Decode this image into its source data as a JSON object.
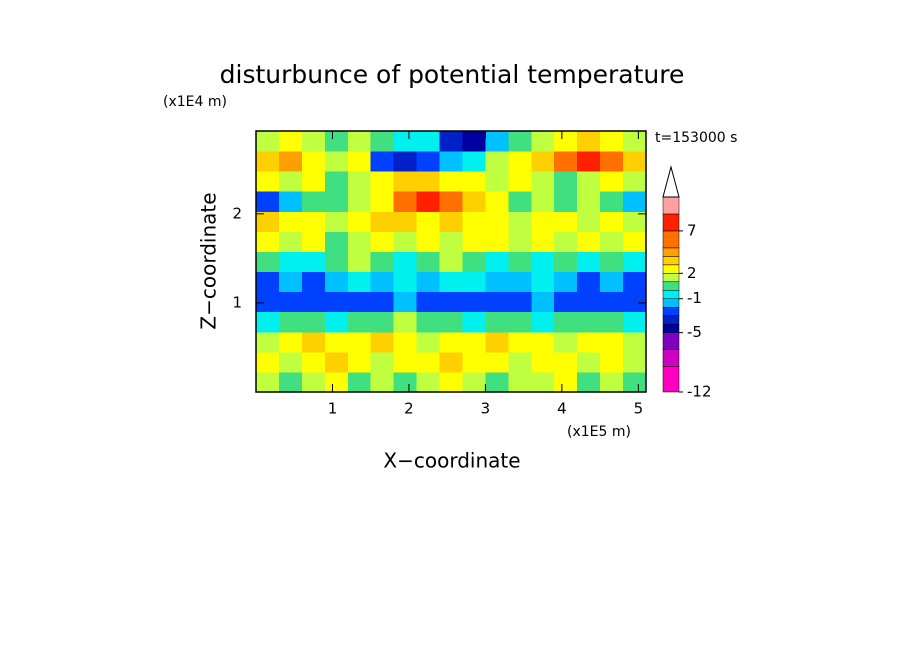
{
  "chart_data": {
    "type": "contour",
    "title": "disturbunce of potential temperature",
    "x_label": "X−coordinate",
    "y_label": "Z−coordinate",
    "x_unit": "(x1E5 m)",
    "y_unit": "(x1E4 m)",
    "annotation": "t=153000 s",
    "xlim": [
      0,
      5.1
    ],
    "ylim": [
      0,
      2.93
    ],
    "xticks": [
      1,
      2,
      3,
      4,
      5
    ],
    "yticks": [
      1,
      2
    ],
    "levels": [
      -12,
      -9,
      -7,
      -5,
      -4,
      -3,
      -2,
      -1,
      0,
      1,
      2,
      3,
      4,
      5,
      7,
      9,
      11
    ],
    "colors": [
      "#ff00c0",
      "#d000c0",
      "#8000c0",
      "#0000a0",
      "#0020c8",
      "#0040ff",
      "#00c0ff",
      "#00f0f0",
      "#40e080",
      "#c0ff40",
      "#ffff00",
      "#ffd000",
      "#ffa000",
      "#ff7000",
      "#ff2000",
      "#ffa0a0"
    ],
    "colorbar_ticks": [
      -12,
      -5,
      -1,
      2,
      7
    ],
    "z": [
      [
        1,
        0,
        1,
        2,
        0,
        1,
        0,
        1,
        2,
        1,
        0,
        1,
        1,
        2,
        0,
        1,
        0
      ],
      [
        2,
        1,
        2,
        3,
        2,
        1,
        2,
        2,
        3,
        2,
        2,
        1,
        2,
        2,
        1,
        2,
        1
      ],
      [
        1,
        2,
        3,
        2,
        2,
        3,
        2,
        1,
        2,
        2,
        3,
        2,
        2,
        1,
        2,
        2,
        1
      ],
      [
        -1,
        0,
        0,
        -1,
        0,
        0,
        1,
        0,
        0,
        -1,
        0,
        0,
        -1,
        0,
        0,
        0,
        -1
      ],
      [
        -3,
        -3,
        -3,
        -3,
        -3,
        -3,
        -2,
        -3,
        -3,
        -3,
        -3,
        -3,
        -2,
        -3,
        -3,
        -3,
        -3
      ],
      [
        -3,
        -2,
        -3,
        -2,
        -1,
        -2,
        -1,
        -2,
        -1,
        -1,
        -2,
        -2,
        -1,
        -2,
        -3,
        -2,
        -3
      ],
      [
        0,
        -1,
        -1,
        0,
        1,
        0,
        -1,
        0,
        1,
        0,
        -1,
        0,
        -1,
        0,
        -1,
        0,
        -1
      ],
      [
        2,
        1,
        2,
        0,
        1,
        2,
        1,
        2,
        1,
        2,
        2,
        1,
        2,
        1,
        2,
        1,
        2
      ],
      [
        3,
        2,
        2,
        1,
        2,
        3,
        3,
        2,
        3,
        2,
        2,
        1,
        2,
        2,
        1,
        2,
        1
      ],
      [
        -3,
        -2,
        0,
        0,
        1,
        2,
        5,
        7,
        5,
        3,
        2,
        0,
        1,
        0,
        1,
        0,
        -2
      ],
      [
        2,
        1,
        2,
        0,
        1,
        2,
        3,
        3,
        2,
        2,
        1,
        2,
        1,
        0,
        1,
        2,
        1
      ],
      [
        3,
        4,
        2,
        1,
        2,
        -3,
        -4,
        -3,
        -2,
        -1,
        1,
        2,
        3,
        5,
        7,
        5,
        3
      ],
      [
        1,
        2,
        1,
        0,
        1,
        0,
        -1,
        -1,
        -4,
        -5,
        -2,
        0,
        1,
        2,
        3,
        2,
        1
      ]
    ]
  }
}
